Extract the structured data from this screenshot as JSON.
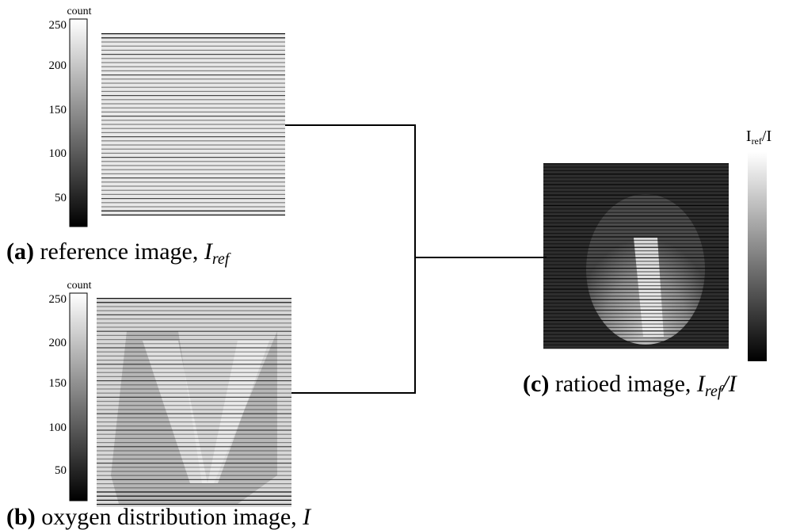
{
  "panels": {
    "a": {
      "letter": "a",
      "caption_text": "reference image,",
      "symbol": "I",
      "symbol_sub": "ref",
      "colorbar_title": "count",
      "colorbar_ticks": [
        "250",
        "200",
        "150",
        "100",
        "50"
      ]
    },
    "b": {
      "letter": "b",
      "caption_text": "oxygen distribution image,",
      "symbol": "I",
      "colorbar_title": "count",
      "colorbar_ticks": [
        "250",
        "200",
        "150",
        "100",
        "50"
      ]
    },
    "c": {
      "letter": "c",
      "caption_text": "ratioed image,",
      "symbol": "I",
      "symbol_sub": "ref",
      "symbol_tail": "/I",
      "colorbar_title_main": "I",
      "colorbar_title_sub": "ref",
      "colorbar_title_tail": "/I"
    }
  },
  "colors": {
    "line": "#000000",
    "background": "#ffffff",
    "image_light": "#e6e6e6",
    "stripe_dark": "#1a1a1a"
  }
}
